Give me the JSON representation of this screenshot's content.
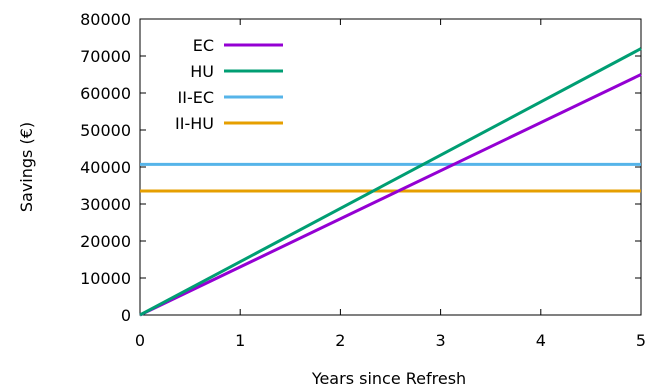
{
  "chart_data": {
    "type": "line",
    "xlabel": "Years since Refresh",
    "ylabel": "Savings (€)",
    "xlim": [
      0,
      5
    ],
    "ylim": [
      0,
      80000
    ],
    "xticks": [
      "0",
      "1",
      "2",
      "3",
      "4",
      "5"
    ],
    "yticks": [
      "0",
      "10000",
      "20000",
      "30000",
      "40000",
      "50000",
      "60000",
      "70000",
      "80000"
    ],
    "grid": false,
    "legend_position": "top-left",
    "series": [
      {
        "name": "EC",
        "color": "#9400d3",
        "x": [
          0,
          5
        ],
        "y": [
          0,
          65000
        ]
      },
      {
        "name": "HU",
        "color": "#009e73",
        "x": [
          0,
          5
        ],
        "y": [
          0,
          72000
        ]
      },
      {
        "name": "II-EC",
        "color": "#56b4e9",
        "x": [
          0,
          5
        ],
        "y": [
          40700,
          40700
        ]
      },
      {
        "name": "II-HU",
        "color": "#e69f00",
        "x": [
          0,
          5
        ],
        "y": [
          33500,
          33500
        ]
      }
    ]
  }
}
